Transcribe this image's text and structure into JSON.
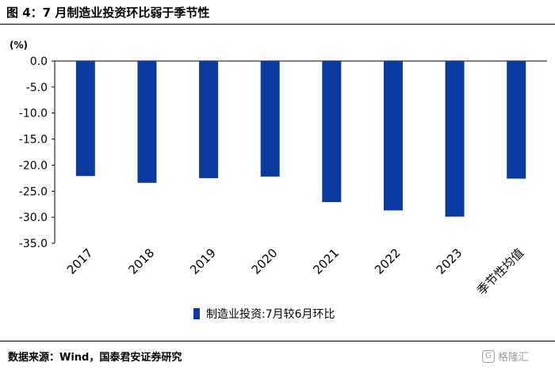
{
  "figure": {
    "title": "图 4：7 月制造业投资环比弱于季节性",
    "unit": "(%)",
    "source": "数据来源：Wind，国泰君安证券研究",
    "watermark": "格隆汇"
  },
  "colors": {
    "bar": "#0b3aa0",
    "axis": "#000000",
    "rule": "#000000"
  },
  "chart_data": {
    "type": "bar",
    "title": "",
    "xlabel": "",
    "ylabel": "(%)",
    "categories": [
      "2017",
      "2018",
      "2019",
      "2020",
      "2021",
      "2022",
      "2023",
      "季节性均值"
    ],
    "series": [
      {
        "name": "制造业投资:7月较6月环比",
        "values": [
          -22.1,
          -23.4,
          -22.5,
          -22.2,
          -27.1,
          -28.7,
          -29.9,
          -22.6
        ]
      }
    ],
    "ylim": [
      -35,
      0
    ],
    "yticks": [
      "0.0",
      "-5.0",
      "-10.0",
      "-15.0",
      "-20.0",
      "-25.0",
      "-30.0",
      "-35.0"
    ],
    "grid": false,
    "legend": "bottom"
  }
}
